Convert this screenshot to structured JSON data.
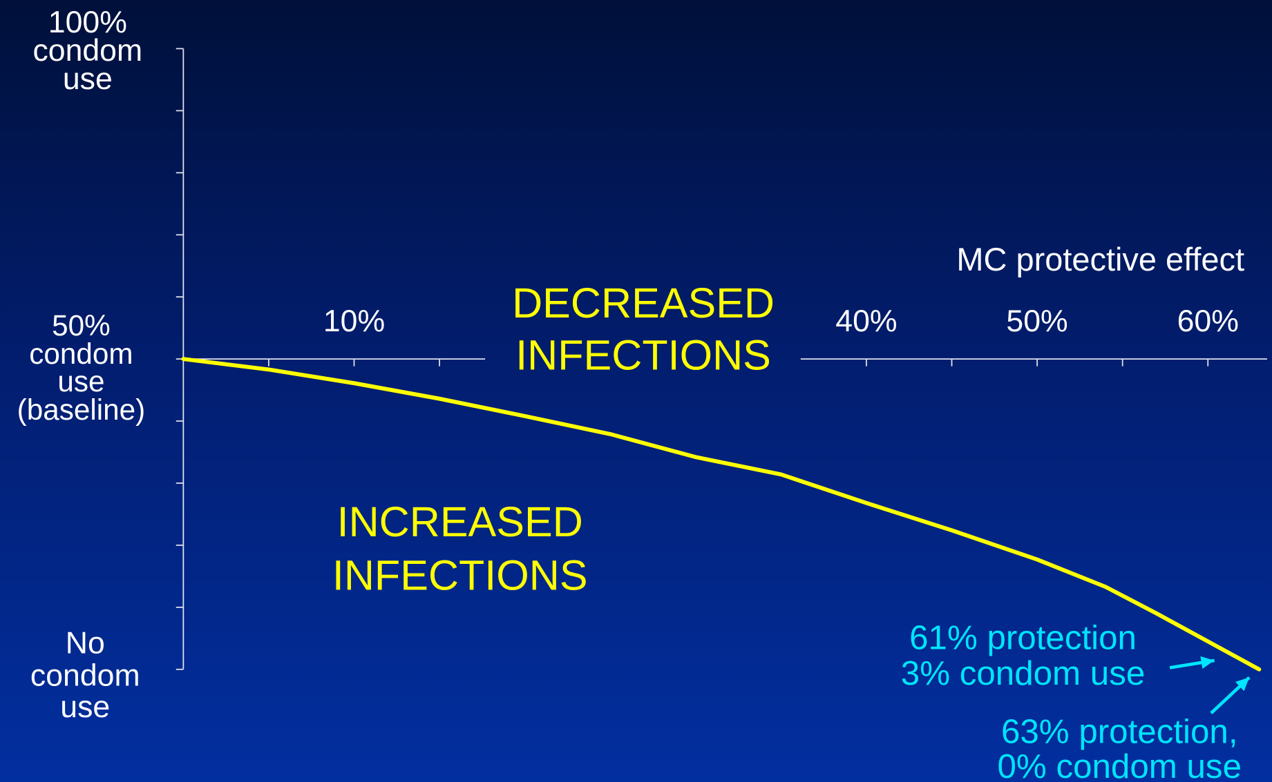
{
  "chart_data": {
    "type": "line",
    "x_axis_label": "MC protective effect",
    "xlim": [
      0,
      64
    ],
    "ylim": [
      0,
      100
    ],
    "x_axis_at": 50,
    "xticks": [
      {
        "value": 5,
        "label": null
      },
      {
        "value": 10,
        "label": "10%"
      },
      {
        "value": 15,
        "label": null
      },
      {
        "value": 20,
        "label": null
      },
      {
        "value": 25,
        "label": null
      },
      {
        "value": 30,
        "label": null
      },
      {
        "value": 35,
        "label": null
      },
      {
        "value": 40,
        "label": "40%"
      },
      {
        "value": 45,
        "label": null
      },
      {
        "value": 50,
        "label": "50%"
      },
      {
        "value": 55,
        "label": null
      },
      {
        "value": 60,
        "label": "60%"
      }
    ],
    "yticks": [
      {
        "value": 0,
        "label": [
          "No",
          "condom",
          "use"
        ]
      },
      {
        "value": 10,
        "label": null
      },
      {
        "value": 20,
        "label": null
      },
      {
        "value": 30,
        "label": null
      },
      {
        "value": 40,
        "label": null
      },
      {
        "value": 50,
        "label": [
          "50%",
          "condom",
          "use",
          "(baseline)"
        ]
      },
      {
        "value": 60,
        "label": null
      },
      {
        "value": 70,
        "label": null
      },
      {
        "value": 80,
        "label": null
      },
      {
        "value": 90,
        "label": null
      },
      {
        "value": 100,
        "label": [
          "100%",
          "condom",
          "use"
        ]
      }
    ],
    "series": [
      {
        "color": "#ffff00",
        "x": [
          0,
          5,
          10,
          15,
          20,
          25,
          30,
          35,
          40,
          45,
          50,
          54,
          57,
          61,
          63
        ],
        "values": [
          50,
          48.3,
          46.1,
          43.6,
          40.8,
          37.9,
          34.2,
          31.4,
          26.8,
          22.4,
          17.7,
          13.3,
          9,
          3,
          0
        ]
      }
    ],
    "annotations": [
      {
        "lines": [
          "DECREASED",
          "INFECTIONS"
        ],
        "color": "#ffff00"
      },
      {
        "lines": [
          "INCREASED",
          "INFECTIONS"
        ],
        "color": "#ffff00"
      },
      {
        "lines": [
          "61% protection",
          "3% condom use"
        ],
        "color": "#00e5ff"
      },
      {
        "lines": [
          "63% protection,",
          "0% condom use"
        ],
        "color": "#00e5ff"
      }
    ]
  }
}
